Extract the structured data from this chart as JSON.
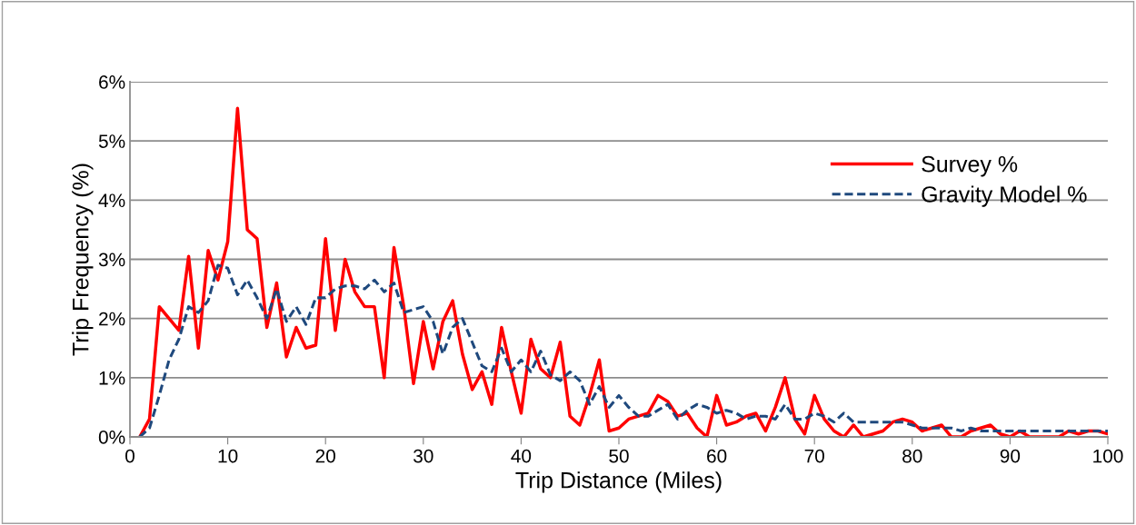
{
  "chart_data": {
    "type": "line",
    "xlabel": "Trip Distance (Miles)",
    "ylabel": "Trip Frequency (%)",
    "x": [
      1,
      2,
      3,
      4,
      5,
      6,
      7,
      8,
      9,
      10,
      11,
      12,
      13,
      14,
      15,
      16,
      17,
      18,
      19,
      20,
      21,
      22,
      23,
      24,
      25,
      26,
      27,
      28,
      29,
      30,
      31,
      32,
      33,
      34,
      35,
      36,
      37,
      38,
      39,
      40,
      41,
      42,
      43,
      44,
      45,
      46,
      47,
      48,
      49,
      50,
      51,
      52,
      53,
      54,
      55,
      56,
      57,
      58,
      59,
      60,
      61,
      62,
      63,
      64,
      65,
      66,
      67,
      68,
      69,
      70,
      71,
      72,
      73,
      74,
      75,
      76,
      77,
      78,
      79,
      80,
      81,
      82,
      83,
      84,
      85,
      86,
      87,
      88,
      89,
      90,
      91,
      92,
      93,
      94,
      95,
      96,
      97,
      98,
      99,
      100
    ],
    "series": [
      {
        "name": "Survey %",
        "color": "#ff0000",
        "line_style": "solid",
        "values": [
          0,
          0.3,
          2.2,
          2.0,
          1.8,
          3.05,
          1.5,
          3.15,
          2.65,
          3.3,
          5.55,
          3.5,
          3.35,
          1.85,
          2.6,
          1.35,
          1.85,
          1.5,
          1.55,
          3.35,
          1.8,
          3.0,
          2.45,
          2.2,
          2.2,
          1.0,
          3.2,
          2.2,
          0.9,
          1.95,
          1.15,
          1.95,
          2.3,
          1.4,
          0.8,
          1.1,
          0.55,
          1.85,
          1.1,
          0.4,
          1.65,
          1.15,
          1.0,
          1.6,
          0.35,
          0.2,
          0.7,
          1.3,
          0.1,
          0.15,
          0.3,
          0.35,
          0.4,
          0.7,
          0.6,
          0.35,
          0.4,
          0.15,
          0.0,
          0.7,
          0.2,
          0.25,
          0.35,
          0.4,
          0.1,
          0.5,
          1.0,
          0.3,
          0.05,
          0.7,
          0.3,
          0.1,
          0.0,
          0.2,
          0.0,
          0.05,
          0.1,
          0.25,
          0.3,
          0.25,
          0.1,
          0.15,
          0.2,
          0.0,
          0.0,
          0.1,
          0.15,
          0.2,
          0.05,
          0.0,
          0.1,
          0.0,
          0.0,
          0.0,
          0.0,
          0.1,
          0.05,
          0.1,
          0.1,
          0.05
        ]
      },
      {
        "name": "Gravity Model %",
        "color": "#1f497d",
        "line_style": "dashed",
        "values": [
          0,
          0.15,
          0.7,
          1.3,
          1.65,
          2.2,
          2.1,
          2.3,
          2.9,
          2.85,
          2.4,
          2.65,
          2.35,
          2.0,
          2.5,
          1.95,
          2.2,
          1.9,
          2.35,
          2.35,
          2.5,
          2.55,
          2.55,
          2.5,
          2.65,
          2.45,
          2.6,
          2.1,
          2.15,
          2.2,
          1.95,
          1.4,
          1.85,
          2.0,
          1.6,
          1.2,
          1.1,
          1.5,
          1.1,
          1.3,
          1.1,
          1.45,
          1.05,
          0.95,
          1.1,
          0.95,
          0.55,
          0.85,
          0.5,
          0.7,
          0.5,
          0.35,
          0.35,
          0.45,
          0.55,
          0.3,
          0.45,
          0.55,
          0.5,
          0.4,
          0.45,
          0.4,
          0.3,
          0.35,
          0.35,
          0.3,
          0.55,
          0.3,
          0.3,
          0.4,
          0.35,
          0.25,
          0.4,
          0.25,
          0.25,
          0.25,
          0.25,
          0.25,
          0.25,
          0.2,
          0.15,
          0.15,
          0.15,
          0.15,
          0.1,
          0.15,
          0.1,
          0.1,
          0.1,
          0.1,
          0.1,
          0.1,
          0.1,
          0.1,
          0.1,
          0.1,
          0.1,
          0.1,
          0.1,
          0.1
        ]
      }
    ],
    "xlim": [
      0,
      100
    ],
    "xticks": [
      0,
      10,
      20,
      30,
      40,
      50,
      60,
      70,
      80,
      90,
      100
    ],
    "ylim": [
      0,
      6
    ],
    "yticks": [
      {
        "value": 0,
        "label": "0%"
      },
      {
        "value": 1,
        "label": "1%"
      },
      {
        "value": 2,
        "label": "2%"
      },
      {
        "value": 3,
        "label": "3%"
      },
      {
        "value": 4,
        "label": "4%"
      },
      {
        "value": 5,
        "label": "5%"
      },
      {
        "value": 6,
        "label": "6%"
      }
    ],
    "grid": "y",
    "legend": "right"
  }
}
